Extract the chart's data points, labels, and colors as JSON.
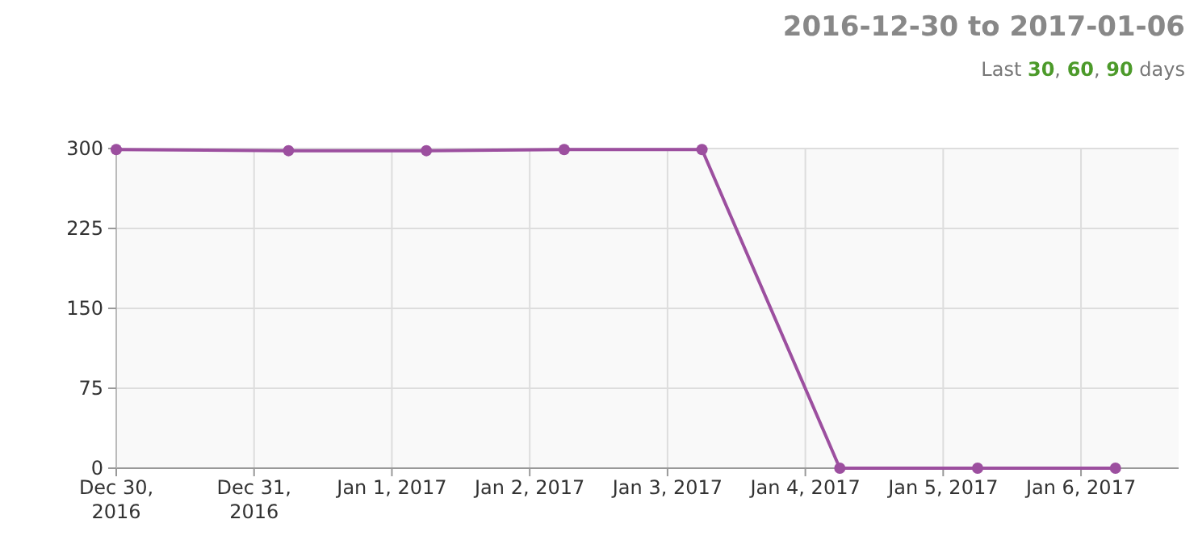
{
  "chart_data": {
    "type": "line",
    "title": "2016-12-30 to 2017-01-06",
    "subtitle": "Last 30, 60, 90 days",
    "x": [
      "2016-12-30T00:00",
      "2016-12-31T06:00",
      "2017-01-01T06:00",
      "2017-01-02T06:00",
      "2017-01-03T06:00",
      "2017-01-04T06:00",
      "2017-01-05T06:00",
      "2017-01-06T06:00"
    ],
    "series": [
      {
        "color": "#9c4f9f",
        "values": [
          299,
          298,
          298,
          299,
          299,
          0,
          0,
          0
        ]
      }
    ],
    "xlim": [
      "2016-12-30T00:00",
      "2017-01-06T17:00"
    ],
    "xticks": [
      {
        "value": "2016-12-30",
        "label": "Dec 30,\n2016"
      },
      {
        "value": "2016-12-31",
        "label": "Dec 31,\n2016"
      },
      {
        "value": "2017-01-01",
        "label": "Jan 1, 2017"
      },
      {
        "value": "2017-01-02",
        "label": "Jan 2, 2017"
      },
      {
        "value": "2017-01-03",
        "label": "Jan 3, 2017"
      },
      {
        "value": "2017-01-04",
        "label": "Jan 4, 2017"
      },
      {
        "value": "2017-01-05",
        "label": "Jan 5, 2017"
      },
      {
        "value": "2017-01-06",
        "label": "Jan 6, 2017"
      }
    ],
    "ylim": [
      0,
      300
    ],
    "yticks": [
      0,
      75,
      150,
      225,
      300
    ],
    "grid": true,
    "marker": "circle",
    "line_style": "solid"
  }
}
